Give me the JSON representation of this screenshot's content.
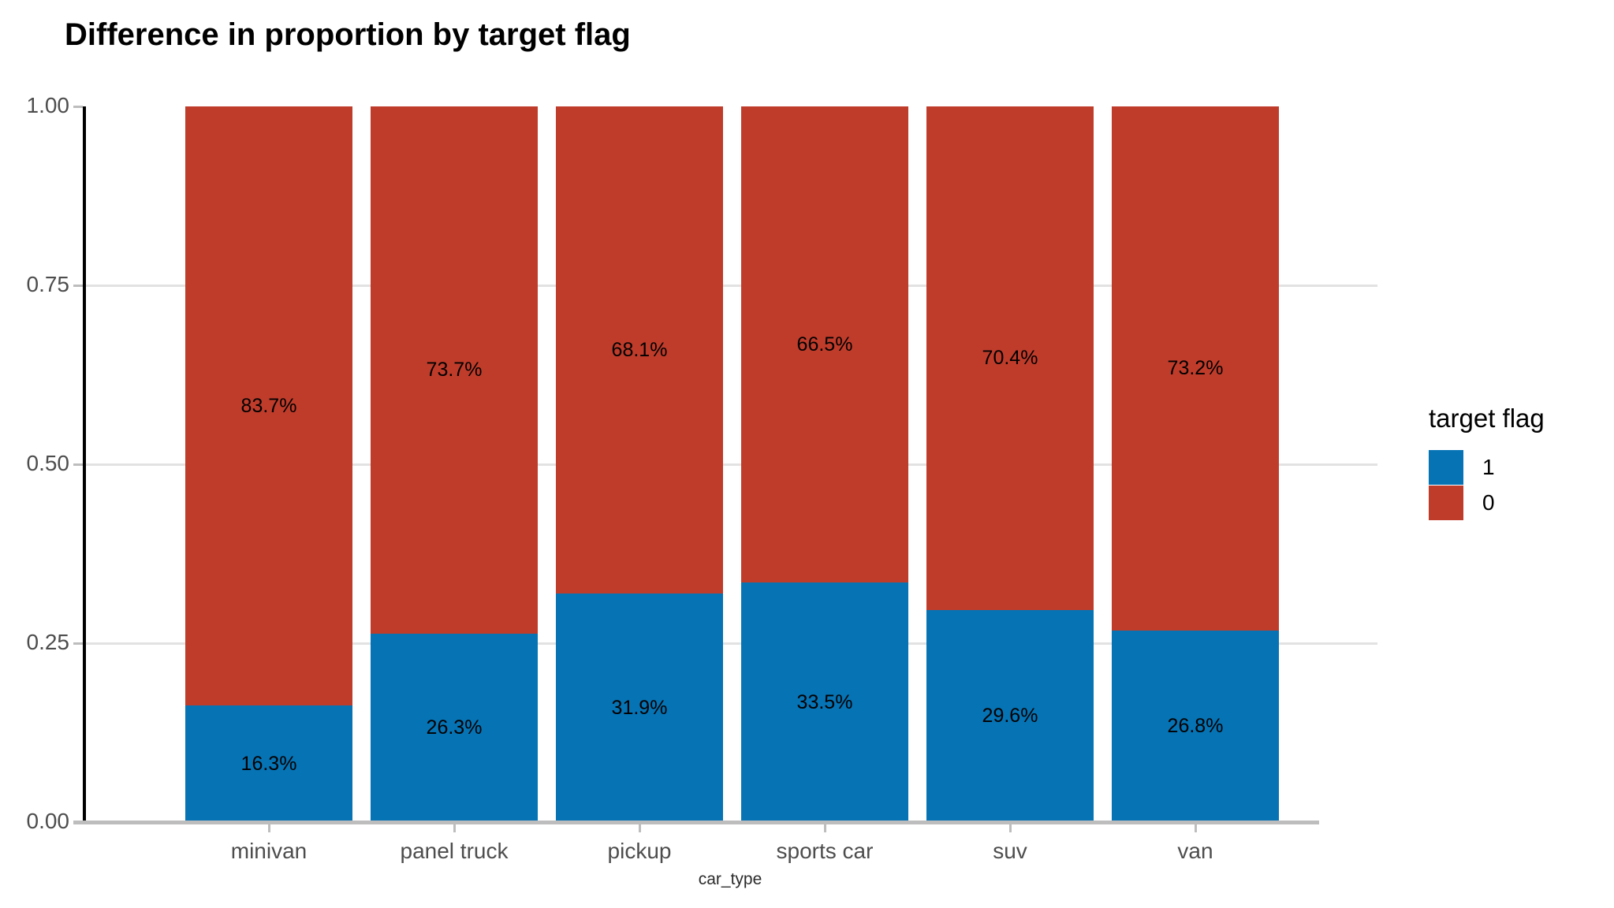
{
  "title": "Difference in proportion by target flag",
  "chart_data": {
    "type": "bar",
    "stacked": true,
    "orientation": "vertical",
    "title": "Difference in proportion by target flag",
    "xlabel": "car_type",
    "ylabel": "",
    "categories": [
      "minivan",
      "panel truck",
      "pickup",
      "sports car",
      "suv",
      "van"
    ],
    "series": [
      {
        "name": "1",
        "color": "#0673b4",
        "values": [
          0.163,
          0.263,
          0.319,
          0.335,
          0.296,
          0.268
        ],
        "labels": [
          "16.3%",
          "26.3%",
          "31.9%",
          "33.5%",
          "29.6%",
          "26.8%"
        ]
      },
      {
        "name": "0",
        "color": "#bf3c2b",
        "values": [
          0.837,
          0.737,
          0.681,
          0.665,
          0.704,
          0.732
        ],
        "labels": [
          "83.7%",
          "73.7%",
          "68.1%",
          "66.5%",
          "70.4%",
          "73.2%"
        ]
      }
    ],
    "ylim": [
      0,
      1
    ],
    "yticks": [
      {
        "value": 0.0,
        "label": "0.00"
      },
      {
        "value": 0.25,
        "label": "0.25"
      },
      {
        "value": 0.5,
        "label": "0.50"
      },
      {
        "value": 0.75,
        "label": "0.75"
      },
      {
        "value": 1.0,
        "label": "1.00"
      }
    ],
    "gridlines": [
      0.25,
      0.5,
      0.75
    ],
    "grid": "horizontal",
    "legend": {
      "title": "target flag",
      "position": "right",
      "entries": [
        {
          "label": "1",
          "color": "#0673b4"
        },
        {
          "label": "0",
          "color": "#bf3c2b"
        }
      ]
    },
    "axis_colors": {
      "y_axis_line": "#000000",
      "x_axis_line": "#bdbdbd",
      "tick_label": "#4d4d4d",
      "gridline": "#e2e2e2"
    }
  }
}
